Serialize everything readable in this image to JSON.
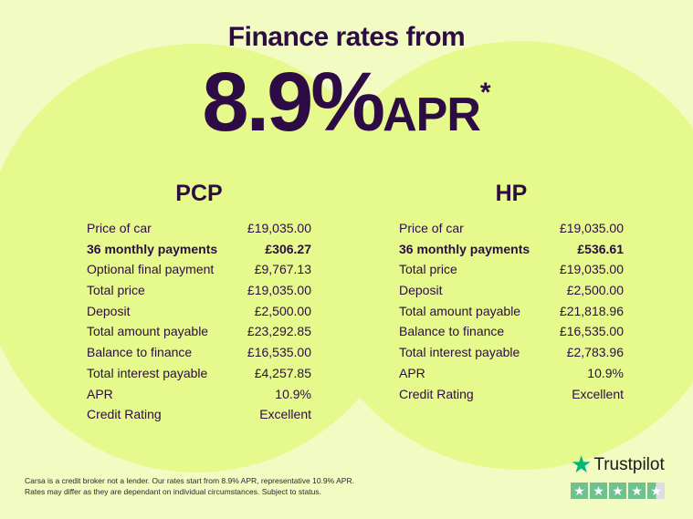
{
  "header": {
    "title": "Finance rates from",
    "rate": "8.9%",
    "apr": "APR",
    "asterisk": "*"
  },
  "pcp": {
    "title": "PCP",
    "rows": [
      {
        "label": "Price of car",
        "value": "£19,035.00",
        "bold": false
      },
      {
        "label": "36 monthly payments",
        "value": "£306.27",
        "bold": true
      },
      {
        "label": "Optional final payment",
        "value": "£9,767.13",
        "bold": false
      },
      {
        "label": "Total price",
        "value": "£19,035.00",
        "bold": false
      },
      {
        "label": "Deposit",
        "value": "£2,500.00",
        "bold": false
      },
      {
        "label": "Total amount payable",
        "value": "£23,292.85",
        "bold": false
      },
      {
        "label": "Balance to finance",
        "value": "£16,535.00",
        "bold": false
      },
      {
        "label": "Total interest payable",
        "value": "£4,257.85",
        "bold": false
      },
      {
        "label": "APR",
        "value": "10.9%",
        "bold": false
      },
      {
        "label": "Credit Rating",
        "value": "Excellent",
        "bold": false
      }
    ]
  },
  "hp": {
    "title": "HP",
    "rows": [
      {
        "label": "Price of car",
        "value": "£19,035.00",
        "bold": false
      },
      {
        "label": "36 monthly payments",
        "value": "£536.61",
        "bold": true
      },
      {
        "label": "Total price",
        "value": "£19,035.00",
        "bold": false
      },
      {
        "label": "Deposit",
        "value": "£2,500.00",
        "bold": false
      },
      {
        "label": "Total amount payable",
        "value": "£21,818.96",
        "bold": false
      },
      {
        "label": "Balance to finance",
        "value": "£16,535.00",
        "bold": false
      },
      {
        "label": "Total interest payable",
        "value": "£2,783.96",
        "bold": false
      },
      {
        "label": "APR",
        "value": "10.9%",
        "bold": false
      },
      {
        "label": "Credit Rating",
        "value": "Excellent",
        "bold": false
      }
    ]
  },
  "footer": {
    "line1": "Carsa is a credit broker not a lender. Our rates start from 8.9% APR, representative 10.9% APR.",
    "line2": "Rates may differ as they are dependant on individual circumstances. Subject to status."
  },
  "trustpilot": {
    "name": "Trustpilot",
    "rating_stars": 4.5,
    "icon": "star-icon",
    "color": "#00b67a"
  }
}
